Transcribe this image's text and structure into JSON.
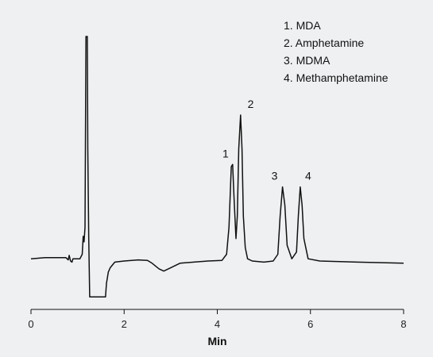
{
  "chart_data": {
    "type": "line",
    "xlabel": "Min",
    "xlim": [
      0,
      8
    ],
    "x_ticks": [
      0,
      2,
      4,
      6,
      8
    ],
    "x_tick_labels": [
      "0",
      "2",
      "4",
      "6",
      "8"
    ],
    "legend": [
      "1. MDA",
      "2. Amphetamine",
      "3. MDMA",
      "4. Methamphetamine"
    ],
    "legend_position": "top-right",
    "grid": false,
    "series": [
      {
        "x": [
          0.0,
          0.3,
          0.6,
          0.75,
          0.8,
          0.82,
          0.85,
          0.88,
          0.9,
          1.0,
          1.05,
          1.1,
          1.12,
          1.14,
          1.16,
          1.18,
          1.2,
          1.21,
          1.22,
          1.24,
          1.26,
          1.27,
          1.28,
          1.6,
          1.62,
          1.66,
          1.7,
          1.8,
          2.0,
          2.3,
          2.5,
          2.6,
          2.75,
          2.85,
          2.95,
          3.2,
          3.8,
          4.1,
          4.2,
          4.25,
          4.3,
          4.33,
          4.36,
          4.4,
          4.43,
          4.46,
          4.5,
          4.53,
          4.56,
          4.6,
          4.65,
          4.75,
          5.0,
          5.2,
          5.3,
          5.35,
          5.4,
          5.45,
          5.5,
          5.6,
          5.7,
          5.74,
          5.78,
          5.82,
          5.86,
          5.95,
          6.2,
          7.0,
          8.0
        ],
        "y": [
          0.01,
          0.015,
          0.015,
          0.015,
          0.005,
          0.025,
          0.0,
          -0.005,
          0.01,
          0.01,
          0.01,
          0.03,
          0.11,
          0.085,
          0.15,
          1.0,
          1.0,
          1.0,
          0.5,
          0.1,
          -0.16,
          -0.16,
          -0.16,
          -0.16,
          -0.1,
          -0.05,
          -0.03,
          -0.005,
          0.0,
          0.005,
          0.003,
          -0.01,
          -0.035,
          -0.045,
          -0.035,
          -0.01,
          0.0,
          0.003,
          0.03,
          0.15,
          0.42,
          0.43,
          0.28,
          0.1,
          0.2,
          0.5,
          0.65,
          0.5,
          0.2,
          0.06,
          0.01,
          0.0,
          -0.005,
          0.0,
          0.03,
          0.2,
          0.33,
          0.25,
          0.07,
          0.01,
          0.04,
          0.2,
          0.33,
          0.25,
          0.1,
          0.01,
          0.0,
          -0.005,
          -0.01
        ]
      }
    ],
    "annotations": [
      {
        "text": "1",
        "x": 4.33,
        "y": 0.43
      },
      {
        "text": "2",
        "x": 4.53,
        "y": 0.65
      },
      {
        "text": "3",
        "x": 5.4,
        "y": 0.33
      },
      {
        "text": "4",
        "x": 5.78,
        "y": 0.33
      }
    ]
  }
}
